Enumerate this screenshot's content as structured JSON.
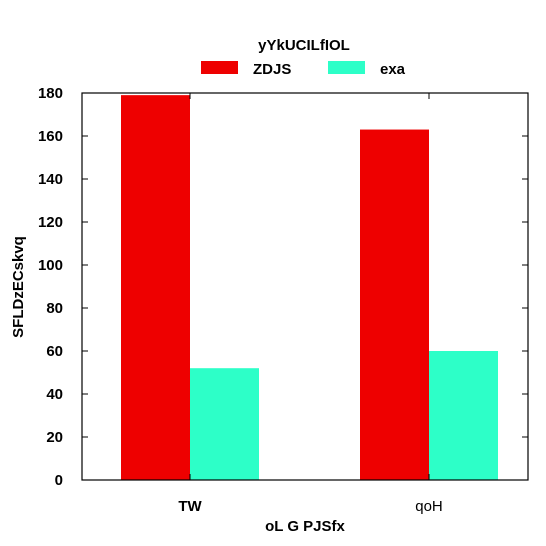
{
  "chart_data": {
    "type": "bar",
    "title": "",
    "legend_title": "yYkUCILfIOL",
    "legend_placement": "top-center",
    "xlabel": "oL G PJSfx",
    "ylabel": "SFLDzECskvq",
    "categories": [
      "TW",
      "qoH"
    ],
    "ylim": [
      0,
      180
    ],
    "yticks": [
      0,
      20,
      40,
      60,
      80,
      100,
      120,
      140,
      160,
      180
    ],
    "grid": false,
    "series": [
      {
        "name": "ZDJS",
        "color": "#ee0000",
        "values": [
          179,
          163
        ]
      },
      {
        "name": "exa",
        "color": "#2dffc8",
        "values": [
          52,
          60
        ]
      }
    ]
  }
}
